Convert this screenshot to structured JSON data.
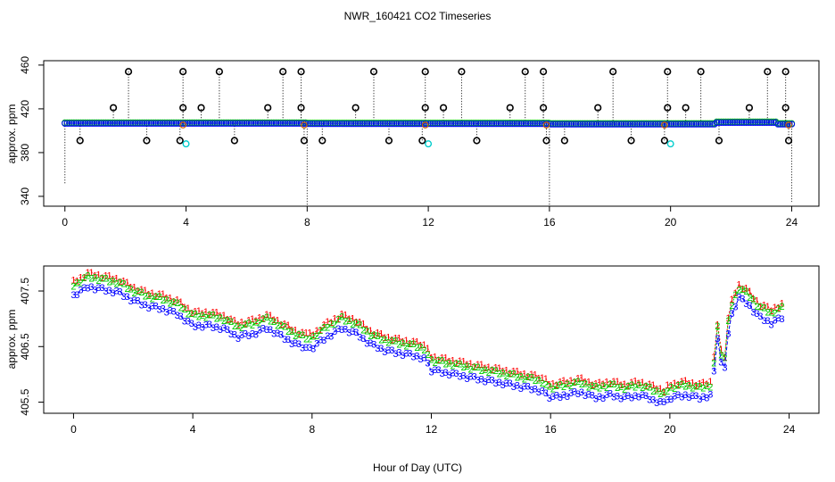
{
  "title": "NWR_160421  CO2 Timeseries",
  "xlabel": "Hour of Day (UTC)",
  "colors": {
    "s1": "#ff0000",
    "s2": "#00cc00",
    "s3": "#0000ff",
    "cyan": "#00cccc",
    "outlier": "#000000"
  },
  "chart_data": [
    {
      "type": "scatter",
      "name": "top",
      "ylabel": "approx. ppm",
      "xlim": [
        -0.7,
        24.9
      ],
      "ylim": [
        331,
        464
      ],
      "xticks": [
        "0",
        "4",
        "8",
        "12",
        "16",
        "20",
        "24"
      ],
      "yticks": [
        "340",
        "380",
        "420",
        "460"
      ],
      "baseline_ppm": 406.7,
      "outliers": [
        {
          "x": 0.0,
          "y": 351,
          "label": ""
        },
        {
          "x": 0.5,
          "y": 391,
          "label": "o"
        },
        {
          "x": 1.6,
          "y": 421,
          "label": "o"
        },
        {
          "x": 2.1,
          "y": 454,
          "label": "o"
        },
        {
          "x": 2.7,
          "y": 391,
          "label": "o"
        },
        {
          "x": 3.8,
          "y": 391,
          "label": "o"
        },
        {
          "x": 3.9,
          "y": 454,
          "label": "o"
        },
        {
          "x": 3.9,
          "y": 421,
          "label": "o"
        },
        {
          "x": 4.5,
          "y": 421,
          "label": "o"
        },
        {
          "x": 5.1,
          "y": 454,
          "label": "o"
        },
        {
          "x": 5.6,
          "y": 391,
          "label": "o"
        },
        {
          "x": 6.7,
          "y": 421,
          "label": "o"
        },
        {
          "x": 7.2,
          "y": 454,
          "label": "o"
        },
        {
          "x": 7.8,
          "y": 454,
          "label": "o"
        },
        {
          "x": 7.8,
          "y": 421,
          "label": "o"
        },
        {
          "x": 7.9,
          "y": 391,
          "label": "o"
        },
        {
          "x": 8.0,
          "y": 331,
          "label": ""
        },
        {
          "x": 8.5,
          "y": 391,
          "label": "o"
        },
        {
          "x": 9.6,
          "y": 421,
          "label": "o"
        },
        {
          "x": 10.2,
          "y": 454,
          "label": "o"
        },
        {
          "x": 10.7,
          "y": 391,
          "label": "o"
        },
        {
          "x": 11.8,
          "y": 391,
          "label": "o"
        },
        {
          "x": 11.9,
          "y": 454,
          "label": "o"
        },
        {
          "x": 11.9,
          "y": 421,
          "label": "o"
        },
        {
          "x": 12.5,
          "y": 421,
          "label": "o"
        },
        {
          "x": 13.1,
          "y": 454,
          "label": "o"
        },
        {
          "x": 13.6,
          "y": 391,
          "label": "o"
        },
        {
          "x": 14.7,
          "y": 421,
          "label": "o"
        },
        {
          "x": 15.2,
          "y": 454,
          "label": "o"
        },
        {
          "x": 15.8,
          "y": 454,
          "label": "o"
        },
        {
          "x": 15.8,
          "y": 421,
          "label": "o"
        },
        {
          "x": 15.9,
          "y": 391,
          "label": "o"
        },
        {
          "x": 16.0,
          "y": 331,
          "label": ""
        },
        {
          "x": 16.5,
          "y": 391,
          "label": "o"
        },
        {
          "x": 17.6,
          "y": 421,
          "label": "o"
        },
        {
          "x": 18.1,
          "y": 454,
          "label": "o"
        },
        {
          "x": 18.7,
          "y": 391,
          "label": "o"
        },
        {
          "x": 19.8,
          "y": 391,
          "label": "o"
        },
        {
          "x": 19.9,
          "y": 454,
          "label": "o"
        },
        {
          "x": 19.9,
          "y": 421,
          "label": "o"
        },
        {
          "x": 20.5,
          "y": 421,
          "label": "o"
        },
        {
          "x": 21.0,
          "y": 454,
          "label": "o"
        },
        {
          "x": 21.6,
          "y": 391,
          "label": "o"
        },
        {
          "x": 22.6,
          "y": 421,
          "label": "o"
        },
        {
          "x": 23.2,
          "y": 454,
          "label": "o"
        },
        {
          "x": 23.8,
          "y": 454,
          "label": "o"
        },
        {
          "x": 23.8,
          "y": 421,
          "label": "o"
        },
        {
          "x": 23.9,
          "y": 391,
          "label": "o"
        },
        {
          "x": 24.0,
          "y": 335,
          "label": ""
        }
      ],
      "cyan_points": [
        {
          "x": 4.0,
          "y": 388
        },
        {
          "x": 12.0,
          "y": 388
        },
        {
          "x": 20.0,
          "y": 388
        }
      ]
    },
    {
      "type": "line",
      "name": "bottom",
      "ylabel": "approx. ppm",
      "xlim": [
        -1.0,
        25.0
      ],
      "ylim": [
        405.3,
        407.95
      ],
      "xticks": [
        "0",
        "4",
        "8",
        "12",
        "16",
        "20",
        "24"
      ],
      "yticks": [
        "405.5",
        "406.5",
        "407.5"
      ],
      "series": [
        {
          "name": "1",
          "symbol": "1",
          "color_key": "s1",
          "offset": 0.12
        },
        {
          "name": "2",
          "symbol": "2",
          "color_key": "s2",
          "offset": 0.06
        },
        {
          "name": "3",
          "symbol": "3",
          "color_key": "s3",
          "offset": -0.12
        }
      ],
      "x": [
        0.0,
        0.5,
        1.0,
        1.5,
        2.0,
        2.5,
        3.0,
        3.5,
        4.0,
        4.5,
        5.0,
        5.5,
        6.0,
        6.5,
        7.0,
        7.5,
        7.8,
        8.0,
        8.5,
        9.0,
        9.5,
        10.0,
        10.5,
        11.0,
        11.5,
        11.8,
        12.0,
        12.5,
        13.0,
        13.5,
        14.0,
        14.5,
        15.0,
        15.5,
        15.8,
        16.0,
        16.5,
        17.0,
        17.5,
        18.0,
        18.5,
        19.0,
        19.5,
        19.8,
        20.0,
        20.5,
        21.0,
        21.4,
        21.6,
        21.8,
        22.0,
        22.3,
        22.6,
        23.0,
        23.4,
        23.8
      ],
      "values": [
        407.55,
        407.7,
        407.65,
        407.6,
        407.45,
        407.35,
        407.3,
        407.2,
        407.0,
        407.0,
        406.95,
        406.8,
        406.85,
        406.95,
        406.8,
        406.65,
        406.6,
        406.6,
        406.8,
        406.95,
        406.85,
        406.65,
        406.55,
        406.5,
        406.45,
        406.4,
        406.2,
        406.15,
        406.1,
        406.05,
        406.0,
        405.95,
        405.9,
        405.85,
        405.8,
        405.7,
        405.75,
        405.8,
        405.7,
        405.75,
        405.7,
        405.75,
        405.65,
        405.6,
        405.7,
        405.75,
        405.7,
        405.75,
        406.8,
        406.0,
        407.1,
        407.5,
        407.4,
        407.15,
        407.05,
        407.15
      ],
      "gaps_after_index": [
        16,
        25,
        34,
        43,
        47
      ]
    }
  ]
}
